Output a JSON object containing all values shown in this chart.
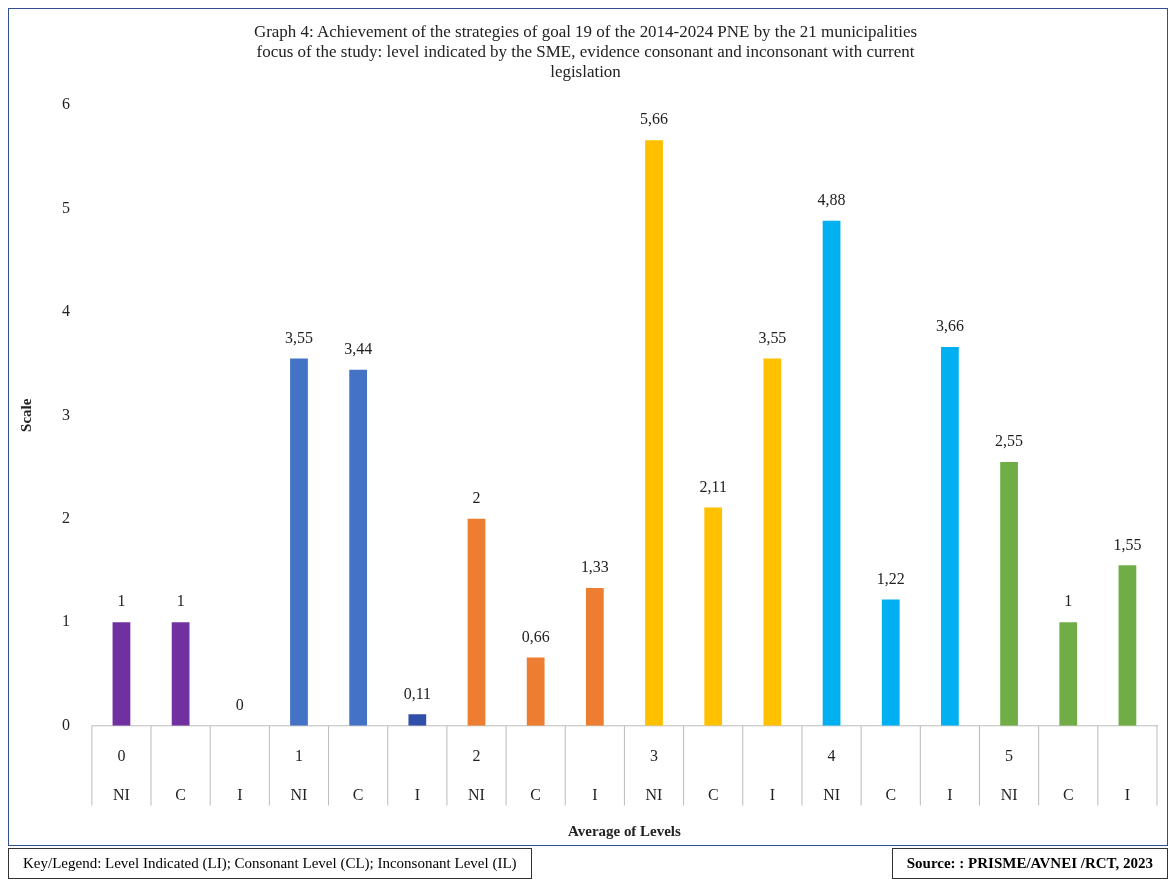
{
  "chart_data": {
    "type": "bar",
    "title": "Graph 4: Achievement of the strategies of goal 19 of the 2014-2024 PNE by the 21 municipalities focus of the study: level indicated by the SME, evidence consonant and inconsonant with current legislation",
    "xlabel": "Average of Levels",
    "ylabel": "Scale",
    "categories": [
      "NI",
      "C",
      "I",
      "NI",
      "C",
      "I",
      "NI",
      "C",
      "I",
      "NI",
      "C",
      "I",
      "NI",
      "C",
      "I",
      "NI",
      "C",
      "I"
    ],
    "values": [
      1,
      1,
      0,
      3.55,
      3.44,
      0.11,
      2,
      0.66,
      1.33,
      5.66,
      2.11,
      3.55,
      4.88,
      1.22,
      3.66,
      2.55,
      1,
      1.55
    ],
    "colors": [
      "#7030a0",
      "#7030a0",
      "#7030a0",
      "#4472c4",
      "#4472c4",
      "#2f4fa8",
      "#ed7d31",
      "#ed7d31",
      "#ed7d31",
      "#ffc000",
      "#ffc000",
      "#ffc000",
      "#00b0f0",
      "#00b0f0",
      "#00b0f0",
      "#70ad47",
      "#70ad47",
      "#70ad47"
    ],
    "value_labels": [
      "1",
      "1",
      "0",
      "3,55",
      "3,44",
      "0,11",
      "2",
      "0,66",
      "1,33",
      "5,66",
      "2,11",
      "3,55",
      "4,88",
      "1,22",
      "3,66",
      "2,55",
      "1",
      "1,55"
    ],
    "ylim": [
      0,
      6
    ],
    "yticks": [
      0,
      1,
      2,
      3,
      4,
      5,
      6
    ],
    "grid": false,
    "legend": false,
    "annotations": [
      "0",
      "1",
      "2",
      "3",
      "4",
      "5",
      "Key/Legend: Level Indicated (LI); Consonant Level (CL); Inconsonant Level (IL)",
      "Source: : PRISME/AVNEI /RCT, 2023"
    ]
  }
}
